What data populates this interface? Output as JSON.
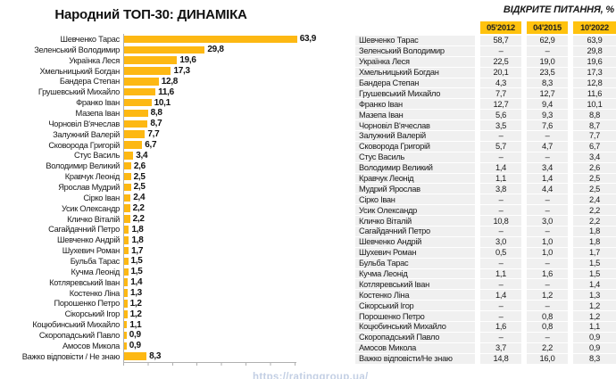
{
  "title": "Народний ТОП-30: ДИНАМІКА",
  "subtitle_right": "ВІДКРИТЕ ПИТАННЯ, %",
  "watermark": "https://ratinggroup.ua/",
  "colors": {
    "bar": "#FDB813",
    "table_header_bg": "#FFC20E",
    "table_row_bg": "#F0F0F0"
  },
  "chart_data": {
    "type": "bar",
    "orientation": "horizontal",
    "title": "Народний ТОП-30: ДИНАМІКА",
    "grid": false,
    "xlim": [
      0,
      65
    ],
    "categories": [
      "Шевченко Тарас",
      "Зеленський Володимир",
      "Українка Леся",
      "Хмельницький Богдан",
      "Бандера Степан",
      "Грушевський Михайло",
      "Франко Іван",
      "Мазепа Іван",
      "Чорновіл В'ячеслав",
      "Залужний Валерій",
      "Сковорода Григорій",
      "Стус Василь",
      "Володимир Великий",
      "Кравчук Леонід",
      "Ярослав Мудрий",
      "Сірко Іван",
      "Усик Олександр",
      "Кличко Віталій",
      "Сагайдачний Петро",
      "Шевченко Андрій",
      "Шухевич Роман",
      "Бульба Тарас",
      "Кучма Леонід",
      "Котляревський Іван",
      "Костенко Ліна",
      "Порошенко Петро",
      "Сікорський Ігор",
      "Коцюбинський Михайло",
      "Скоропадський Павло",
      "Амосов Микола",
      "Важко відповісти / Не знаю"
    ],
    "values": [
      63.9,
      29.8,
      19.6,
      17.3,
      12.8,
      11.6,
      10.1,
      8.8,
      8.7,
      7.7,
      6.7,
      3.4,
      2.6,
      2.5,
      2.5,
      2.4,
      2.2,
      2.2,
      1.8,
      1.8,
      1.7,
      1.5,
      1.5,
      1.4,
      1.3,
      1.2,
      1.2,
      1.1,
      0.9,
      0.9,
      8.3
    ],
    "value_labels": [
      "63,9",
      "29,8",
      "19,6",
      "17,3",
      "12,8",
      "11,6",
      "10,1",
      "8,8",
      "8,7",
      "7,7",
      "6,7",
      "3,4",
      "2,6",
      "2,5",
      "2,5",
      "2,4",
      "2,2",
      "2,2",
      "1,8",
      "1,8",
      "1,7",
      "1,5",
      "1,5",
      "1,4",
      "1,3",
      "1,2",
      "1,2",
      "1,1",
      "0,9",
      "0,9",
      "8,3"
    ]
  },
  "table": {
    "columns": [
      "05'2012",
      "04'2015",
      "10'2022"
    ],
    "rows": [
      {
        "name": "Шевченко Тарас",
        "values": [
          "58,7",
          "62,9",
          "63,9"
        ]
      },
      {
        "name": "Зеленський Володимир",
        "values": [
          "–",
          "–",
          "29,8"
        ]
      },
      {
        "name": "Українка Леся",
        "values": [
          "22,5",
          "19,0",
          "19,6"
        ]
      },
      {
        "name": "Хмельницький Богдан",
        "values": [
          "20,1",
          "23,5",
          "17,3"
        ]
      },
      {
        "name": "Бандера Степан",
        "values": [
          "4,3",
          "8,3",
          "12,8"
        ]
      },
      {
        "name": "Грушевський Михайло",
        "values": [
          "7,7",
          "12,7",
          "11,6"
        ]
      },
      {
        "name": "Франко Іван",
        "values": [
          "12,7",
          "9,4",
          "10,1"
        ]
      },
      {
        "name": "Мазепа Іван",
        "values": [
          "5,6",
          "9,3",
          "8,8"
        ]
      },
      {
        "name": "Чорновіл В'ячеслав",
        "values": [
          "3,5",
          "7,6",
          "8,7"
        ]
      },
      {
        "name": "Залужний Валерій",
        "values": [
          "–",
          "–",
          "7,7"
        ]
      },
      {
        "name": "Сковорода Григорій",
        "values": [
          "5,7",
          "4,7",
          "6,7"
        ]
      },
      {
        "name": "Стус Василь",
        "values": [
          "–",
          "–",
          "3,4"
        ]
      },
      {
        "name": "Володимир Великий",
        "values": [
          "1,4",
          "3,4",
          "2,6"
        ]
      },
      {
        "name": "Кравчук Леонід",
        "values": [
          "1,1",
          "1,4",
          "2,5"
        ]
      },
      {
        "name": "Мудрий Ярослав",
        "values": [
          "3,8",
          "4,4",
          "2,5"
        ]
      },
      {
        "name": "Сірко Іван",
        "values": [
          "–",
          "–",
          "2,4"
        ]
      },
      {
        "name": "Усик Олександр",
        "values": [
          "–",
          "–",
          "2,2"
        ]
      },
      {
        "name": "Кличко Віталій",
        "values": [
          "10,8",
          "3,0",
          "2,2"
        ]
      },
      {
        "name": "Сагайдачний Петро",
        "values": [
          "–",
          "–",
          "1,8"
        ]
      },
      {
        "name": "Шевченко Андрій",
        "values": [
          "3,0",
          "1,0",
          "1,8"
        ]
      },
      {
        "name": "Шухевич Роман",
        "values": [
          "0,5",
          "1,0",
          "1,7"
        ]
      },
      {
        "name": "Бульба Тарас",
        "values": [
          "–",
          "–",
          "1,5"
        ]
      },
      {
        "name": "Кучма Леонід",
        "values": [
          "1,1",
          "1,6",
          "1,5"
        ]
      },
      {
        "name": "Котляревський Іван",
        "values": [
          "–",
          "–",
          "1,4"
        ]
      },
      {
        "name": "Костенко Ліна",
        "values": [
          "1,4",
          "1,2",
          "1,3"
        ]
      },
      {
        "name": "Сікорський Ігор",
        "values": [
          "–",
          "–",
          "1,2"
        ]
      },
      {
        "name": "Порошенко Петро",
        "values": [
          "–",
          "0,8",
          "1,2"
        ]
      },
      {
        "name": "Коцюбинський Михайло",
        "values": [
          "1,6",
          "0,8",
          "1,1"
        ]
      },
      {
        "name": "Скоропадський Павло",
        "values": [
          "–",
          "–",
          "0,9"
        ]
      },
      {
        "name": "Амосов Микола",
        "values": [
          "3,7",
          "2,2",
          "0,9"
        ]
      },
      {
        "name": "Важко відповісти/Не знаю",
        "values": [
          "14,8",
          "16,0",
          "8,3"
        ]
      }
    ]
  }
}
